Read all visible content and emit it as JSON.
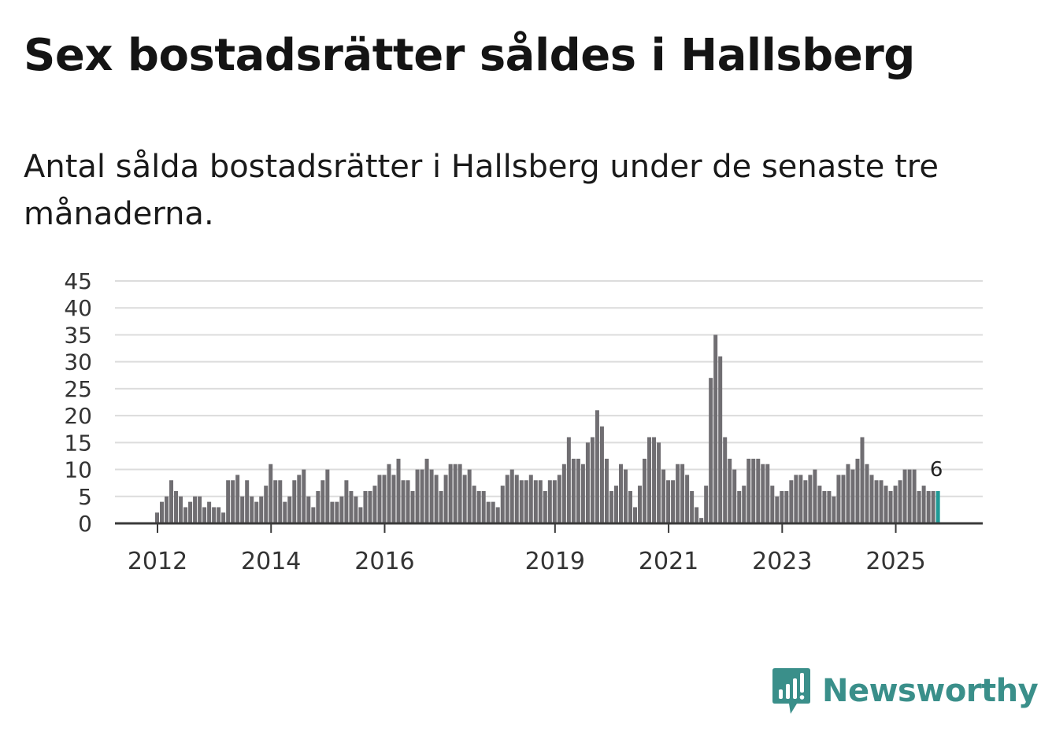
{
  "title": "Sex bostadsrätter såldes i Hallsberg",
  "subtitle": "Antal sålda bostadsrätter i Hallsberg under de senaste tre månaderna.",
  "brand": {
    "name": "Newsworthy",
    "icon": "newsworthy-logo-icon",
    "color": "#3a8f8a"
  },
  "chart_data": {
    "type": "bar",
    "title": "Sex bostadsrätter såldes i Hallsberg",
    "xlabel": "",
    "ylabel": "",
    "ylim": [
      0,
      45
    ],
    "y_ticks": [
      0,
      5,
      10,
      15,
      20,
      25,
      30,
      35,
      40,
      45
    ],
    "grid": true,
    "bar_color": "#706e72",
    "highlight_color": "#1f9a96",
    "x_ticks": [
      {
        "label": "2012",
        "index": 0
      },
      {
        "label": "2014",
        "index": 24
      },
      {
        "label": "2016",
        "index": 48
      },
      {
        "label": "2019",
        "index": 84
      },
      {
        "label": "2021",
        "index": 108
      },
      {
        "label": "2023",
        "index": 132
      },
      {
        "label": "2025",
        "index": 156
      }
    ],
    "annotation": {
      "index": 165,
      "label": "6"
    },
    "categories_start": "2012-01",
    "values": [
      2,
      4,
      5,
      8,
      6,
      5,
      3,
      4,
      5,
      5,
      3,
      4,
      3,
      3,
      2,
      8,
      8,
      9,
      5,
      8,
      5,
      4,
      5,
      7,
      11,
      8,
      8,
      4,
      5,
      8,
      9,
      10,
      5,
      3,
      6,
      8,
      10,
      4,
      4,
      5,
      8,
      6,
      5,
      3,
      6,
      6,
      7,
      9,
      9,
      11,
      9,
      12,
      8,
      8,
      6,
      10,
      10,
      12,
      10,
      9,
      6,
      9,
      11,
      11,
      11,
      9,
      10,
      7,
      6,
      6,
      4,
      4,
      3,
      7,
      9,
      10,
      9,
      8,
      8,
      9,
      8,
      8,
      6,
      8,
      8,
      9,
      11,
      16,
      12,
      12,
      11,
      15,
      16,
      21,
      18,
      12,
      6,
      7,
      11,
      10,
      6,
      3,
      7,
      12,
      16,
      16,
      15,
      10,
      8,
      8,
      11,
      11,
      9,
      6,
      3,
      1,
      7,
      27,
      35,
      31,
      16,
      12,
      10,
      6,
      7,
      12,
      12,
      12,
      11,
      11,
      7,
      5,
      6,
      6,
      8,
      9,
      9,
      8,
      9,
      10,
      7,
      6,
      6,
      5,
      9,
      9,
      11,
      10,
      12,
      16,
      11,
      9,
      8,
      8,
      7,
      6,
      7,
      8,
      10,
      10,
      10,
      6,
      7,
      6,
      6,
      6
    ]
  }
}
